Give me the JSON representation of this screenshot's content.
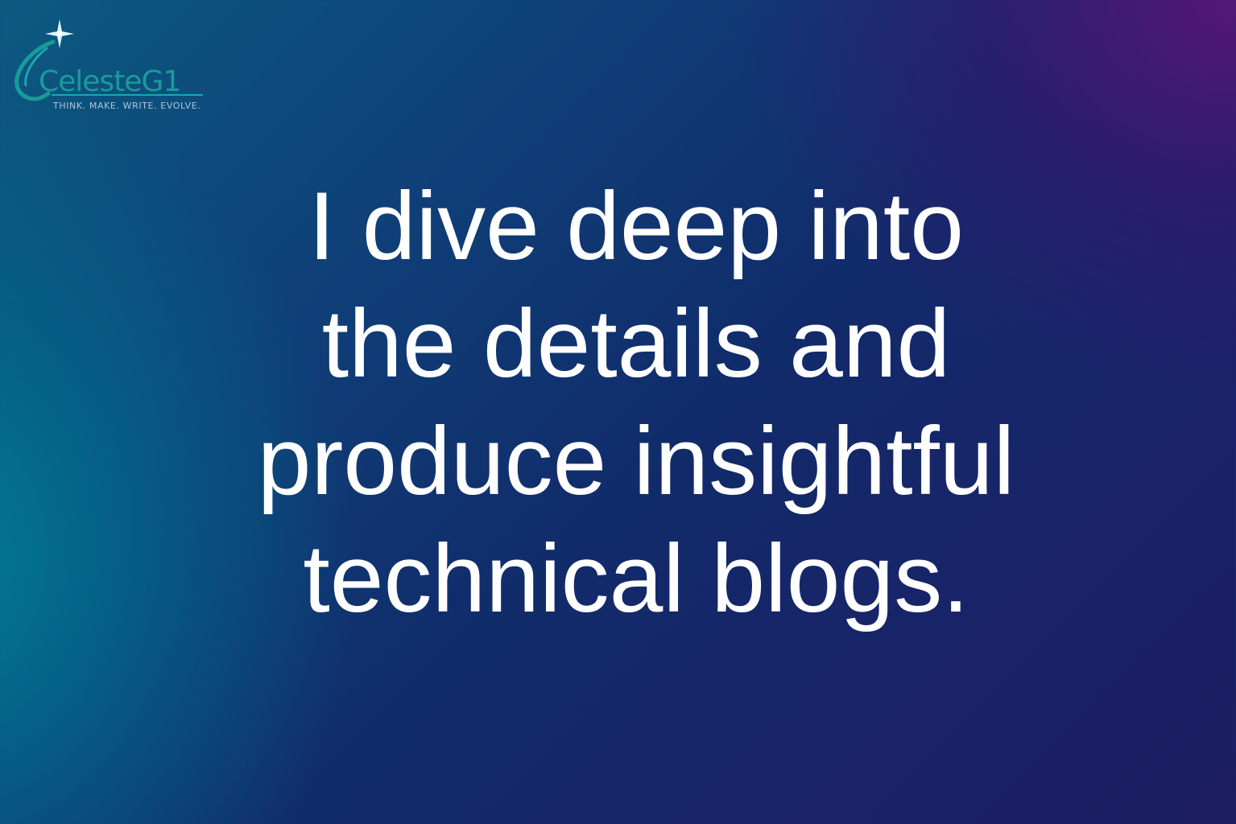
{
  "logo": {
    "name": "CelesteG1",
    "tagline": "THINK. MAKE. WRITE. EVOLVE.",
    "colors": {
      "swoosh": "#1a9a9c",
      "star": "#dff6ff",
      "text": "#1a9a9c",
      "tagline": "#a9c6d8"
    }
  },
  "headline": {
    "lines": [
      "I dive deep into",
      "the details and",
      "produce insightful",
      "technical blogs."
    ],
    "color": "#ffffff"
  },
  "background": {
    "colors": [
      "#0b7a92",
      "#112b6a",
      "#4a1870"
    ]
  }
}
